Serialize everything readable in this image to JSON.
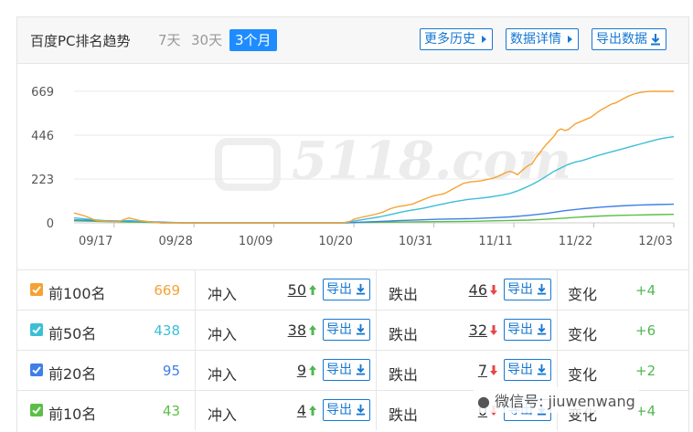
{
  "header": {
    "title": "百度PC排名趋势",
    "ranges": [
      "7天",
      "30天",
      "3个月"
    ],
    "active_range": "3个月",
    "buttons": {
      "history": "更多历史",
      "details": "数据详情",
      "export": "导出数据"
    }
  },
  "chart_data": {
    "type": "line",
    "title": "",
    "xlabel": "",
    "ylabel": "",
    "ylim": [
      0,
      669
    ],
    "y_ticks": [
      0,
      223,
      446,
      669
    ],
    "x_ticks": [
      "09/17",
      "09/28",
      "10/09",
      "10/20",
      "10/31",
      "11/11",
      "11/22",
      "12/03"
    ],
    "watermark": "5118.com",
    "grid": true,
    "series": [
      {
        "name": "前100名",
        "color": "#f5a233",
        "x": [
          0,
          3,
          6,
          9,
          12,
          15,
          18,
          21,
          24,
          30,
          40,
          50,
          60,
          70,
          74,
          76,
          77,
          79,
          81,
          83,
          85,
          87,
          89,
          91,
          93,
          95,
          97,
          98,
          99,
          101,
          102,
          103,
          104,
          105,
          106,
          107,
          108,
          109,
          110,
          111,
          112,
          113,
          114,
          115,
          116,
          117,
          118,
          119,
          120,
          121,
          122,
          123,
          124,
          125,
          126,
          127,
          128,
          129,
          130,
          131,
          132,
          133,
          134,
          135,
          136,
          137,
          138,
          139,
          140,
          141,
          142,
          143,
          144,
          145,
          146,
          147,
          148,
          149,
          150,
          151,
          152,
          153,
          154,
          155,
          156,
          157,
          158,
          159,
          160,
          161,
          162,
          163,
          164,
          165
        ],
        "values": [
          50,
          35,
          12,
          8,
          5,
          25,
          12,
          5,
          0,
          0,
          0,
          0,
          0,
          0,
          0,
          8,
          18,
          28,
          36,
          44,
          55,
          72,
          82,
          88,
          95,
          110,
          125,
          132,
          138,
          145,
          150,
          160,
          170,
          180,
          190,
          200,
          205,
          208,
          210,
          212,
          214,
          218,
          222,
          226,
          232,
          240,
          248,
          258,
          262,
          255,
          245,
          262,
          278,
          292,
          300,
          330,
          352,
          378,
          400,
          420,
          440,
          468,
          478,
          470,
          475,
          490,
          505,
          512,
          520,
          528,
          535,
          548,
          562,
          575,
          585,
          595,
          605,
          610,
          620,
          630,
          640,
          648,
          655,
          660,
          664,
          666,
          668,
          669,
          669,
          669,
          669,
          669,
          669,
          669
        ]
      },
      {
        "name": "前50名",
        "color": "#3bbfd6",
        "x": [
          0,
          3,
          6,
          9,
          12,
          15,
          18,
          21,
          24,
          30,
          40,
          50,
          60,
          70,
          74,
          76,
          78,
          80,
          82,
          84,
          86,
          88,
          90,
          92,
          94,
          96,
          98,
          100,
          102,
          104,
          106,
          108,
          110,
          112,
          114,
          116,
          118,
          120,
          122,
          124,
          126,
          128,
          130,
          132,
          134,
          136,
          138,
          140,
          142,
          144,
          146,
          148,
          150,
          152,
          154,
          156,
          158,
          160,
          162,
          164,
          165
        ],
        "values": [
          25,
          20,
          15,
          10,
          8,
          12,
          8,
          5,
          0,
          0,
          0,
          0,
          0,
          0,
          0,
          6,
          12,
          18,
          24,
          30,
          38,
          46,
          55,
          62,
          68,
          74,
          82,
          90,
          98,
          106,
          112,
          118,
          122,
          126,
          130,
          136,
          142,
          150,
          162,
          178,
          195,
          215,
          238,
          262,
          280,
          298,
          310,
          318,
          330,
          342,
          352,
          362,
          372,
          382,
          392,
          402,
          412,
          422,
          430,
          436,
          438
        ]
      },
      {
        "name": "前20名",
        "color": "#3f7fe8",
        "x": [
          0,
          10,
          20,
          30,
          50,
          70,
          74,
          80,
          85,
          90,
          95,
          100,
          105,
          110,
          115,
          120,
          125,
          130,
          135,
          140,
          145,
          150,
          155,
          160,
          165
        ],
        "values": [
          15,
          10,
          6,
          0,
          0,
          0,
          0,
          4,
          8,
          12,
          15,
          18,
          20,
          22,
          26,
          30,
          38,
          48,
          62,
          72,
          80,
          86,
          90,
          93,
          95
        ]
      },
      {
        "name": "前10名",
        "color": "#5bbf46",
        "x": [
          0,
          10,
          20,
          30,
          50,
          70,
          74,
          80,
          90,
          100,
          110,
          115,
          120,
          125,
          130,
          135,
          140,
          145,
          150,
          155,
          160,
          165
        ],
        "values": [
          10,
          6,
          3,
          0,
          0,
          0,
          0,
          2,
          4,
          6,
          8,
          10,
          12,
          14,
          18,
          24,
          30,
          35,
          38,
          40,
          42,
          43
        ]
      }
    ]
  },
  "rows": [
    {
      "name": "前100名",
      "value": "669",
      "value_color": "#f5a233",
      "cb_color": "#f5a233",
      "in_label": "冲入",
      "in": "50",
      "export_label": "导出",
      "out_label": "跌出",
      "out": "46",
      "change_label": "变化",
      "change": "+4"
    },
    {
      "name": "前50名",
      "value": "438",
      "value_color": "#3bbfd6",
      "cb_color": "#3bbfd6",
      "in_label": "冲入",
      "in": "38",
      "export_label": "导出",
      "out_label": "跌出",
      "out": "32",
      "change_label": "变化",
      "change": "+6"
    },
    {
      "name": "前20名",
      "value": "95",
      "value_color": "#3f7fe8",
      "cb_color": "#3f7fe8",
      "in_label": "冲入",
      "in": "9",
      "export_label": "导出",
      "out_label": "跌出",
      "out": "7",
      "change_label": "变化",
      "change": "+2"
    },
    {
      "name": "前10名",
      "value": "43",
      "value_color": "#5bbf46",
      "cb_color": "#5bbf46",
      "in_label": "冲入",
      "in": "4",
      "export_label": "导出",
      "out_label": "跌出",
      "out": "0",
      "change_label": "变化",
      "change": "+4"
    }
  ],
  "wechat_watermark": "微信号: jiuwenwang"
}
